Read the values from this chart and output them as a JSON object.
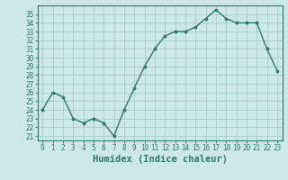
{
  "x": [
    0,
    1,
    2,
    3,
    4,
    5,
    6,
    7,
    8,
    9,
    10,
    11,
    12,
    13,
    14,
    15,
    16,
    17,
    18,
    19,
    20,
    21,
    22,
    23
  ],
  "y": [
    24,
    26,
    25.5,
    23,
    22.5,
    23,
    22.5,
    21,
    24,
    26.5,
    29,
    31,
    32.5,
    33,
    33,
    33.5,
    34.5,
    35.5,
    34.5,
    34,
    34,
    34,
    31,
    28.5
  ],
  "xlabel": "Humidex (Indice chaleur)",
  "xlim": [
    -0.5,
    23.5
  ],
  "ylim": [
    20.5,
    36
  ],
  "yticks": [
    21,
    22,
    23,
    24,
    25,
    26,
    27,
    28,
    29,
    30,
    31,
    32,
    33,
    34,
    35
  ],
  "xticks": [
    0,
    1,
    2,
    3,
    4,
    5,
    6,
    7,
    8,
    9,
    10,
    11,
    12,
    13,
    14,
    15,
    16,
    17,
    18,
    19,
    20,
    21,
    22,
    23
  ],
  "line_color": "#2d7a6a",
  "marker_color": "#2d7a6a",
  "bg_color": "#cde8e8",
  "grid_color": "#a8cccc",
  "tick_fontsize": 5.5,
  "label_fontsize": 7.5
}
